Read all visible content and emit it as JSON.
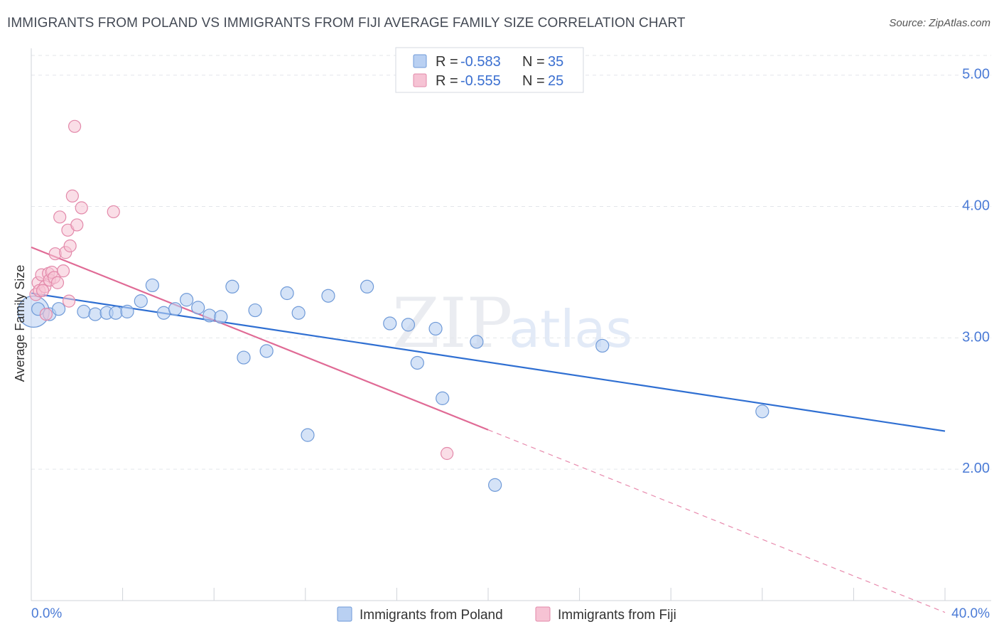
{
  "header": {
    "title": "IMMIGRANTS FROM POLAND VS IMMIGRANTS FROM FIJI AVERAGE FAMILY SIZE CORRELATION CHART",
    "source_prefix": "Source:",
    "source_value": "ZipAtlas.com"
  },
  "watermark": {
    "zip": "ZIP",
    "atlas": "atlas"
  },
  "colors": {
    "poland": "#4f86d6",
    "poland_fill": "#b9d0f2",
    "fiji": "#e0709a",
    "fiji_fill": "#f6c3d4",
    "axis_text": "#4b7bd6"
  },
  "chart_data": {
    "type": "scatter",
    "title": "IMMIGRANTS FROM POLAND VS IMMIGRANTS FROM FIJI AVERAGE FAMILY SIZE CORRELATION CHART",
    "xlabel": "",
    "ylabel": "Average Family Size",
    "xlim": [
      0,
      40
    ],
    "ylim": [
      1.0,
      5.15
    ],
    "x_tick_labels": [
      "0.0%",
      "40.0%"
    ],
    "y_ticks": [
      2.0,
      3.0,
      4.0,
      5.0
    ],
    "y_tick_labels": [
      "2.00",
      "3.00",
      "4.00",
      "5.00"
    ],
    "grid": true,
    "legend": {
      "placement": "top-center",
      "entries": [
        {
          "r_label": "R =",
          "r_value": "-0.583",
          "n_label": "N =",
          "n_value": "35"
        },
        {
          "r_label": "R =",
          "r_value": "-0.555",
          "n_label": "N =",
          "n_value": "25"
        }
      ]
    },
    "series": [
      {
        "name": "Immigrants from Poland",
        "color": "#4f86d6",
        "points": [
          [
            0.1,
            3.2
          ],
          [
            0.8,
            3.18
          ],
          [
            1.2,
            3.22
          ],
          [
            2.3,
            3.2
          ],
          [
            2.8,
            3.18
          ],
          [
            3.3,
            3.19
          ],
          [
            3.7,
            3.19
          ],
          [
            4.2,
            3.2
          ],
          [
            4.8,
            3.28
          ],
          [
            5.3,
            3.4
          ],
          [
            5.8,
            3.19
          ],
          [
            6.3,
            3.22
          ],
          [
            6.8,
            3.29
          ],
          [
            7.3,
            3.23
          ],
          [
            7.8,
            3.17
          ],
          [
            8.3,
            3.16
          ],
          [
            8.8,
            3.39
          ],
          [
            9.3,
            2.85
          ],
          [
            9.8,
            3.21
          ],
          [
            10.3,
            2.9
          ],
          [
            11.2,
            3.34
          ],
          [
            11.7,
            3.19
          ],
          [
            12.1,
            2.26
          ],
          [
            13.0,
            3.32
          ],
          [
            14.7,
            3.39
          ],
          [
            15.7,
            3.11
          ],
          [
            16.5,
            3.1
          ],
          [
            16.9,
            2.81
          ],
          [
            17.7,
            3.07
          ],
          [
            18.0,
            2.54
          ],
          [
            19.5,
            2.97
          ],
          [
            20.3,
            1.88
          ],
          [
            25.0,
            2.94
          ],
          [
            32.0,
            2.44
          ],
          [
            0.3,
            3.22
          ]
        ],
        "trend": {
          "x": [
            0,
            40
          ],
          "y": [
            3.34,
            2.29
          ]
        }
      },
      {
        "name": "Immigrants from Fiji",
        "color": "#e0709a",
        "points": [
          [
            0.2,
            3.33
          ],
          [
            0.3,
            3.42
          ],
          [
            0.35,
            3.36
          ],
          [
            0.45,
            3.48
          ],
          [
            0.6,
            3.39
          ],
          [
            0.65,
            3.18
          ],
          [
            0.75,
            3.49
          ],
          [
            0.8,
            3.44
          ],
          [
            0.9,
            3.5
          ],
          [
            1.0,
            3.46
          ],
          [
            1.05,
            3.64
          ],
          [
            1.15,
            3.42
          ],
          [
            1.25,
            3.92
          ],
          [
            1.4,
            3.51
          ],
          [
            1.5,
            3.65
          ],
          [
            1.6,
            3.82
          ],
          [
            1.65,
            3.28
          ],
          [
            1.7,
            3.7
          ],
          [
            1.8,
            4.08
          ],
          [
            1.9,
            4.61
          ],
          [
            2.0,
            3.86
          ],
          [
            2.2,
            3.99
          ],
          [
            3.6,
            3.96
          ],
          [
            18.2,
            2.12
          ],
          [
            0.5,
            3.36
          ]
        ],
        "trend": {
          "x": [
            0,
            20
          ],
          "y": [
            3.69,
            2.3
          ]
        },
        "trend_extension": {
          "x": [
            20,
            40
          ],
          "y": [
            2.3,
            0.91
          ]
        }
      }
    ]
  }
}
